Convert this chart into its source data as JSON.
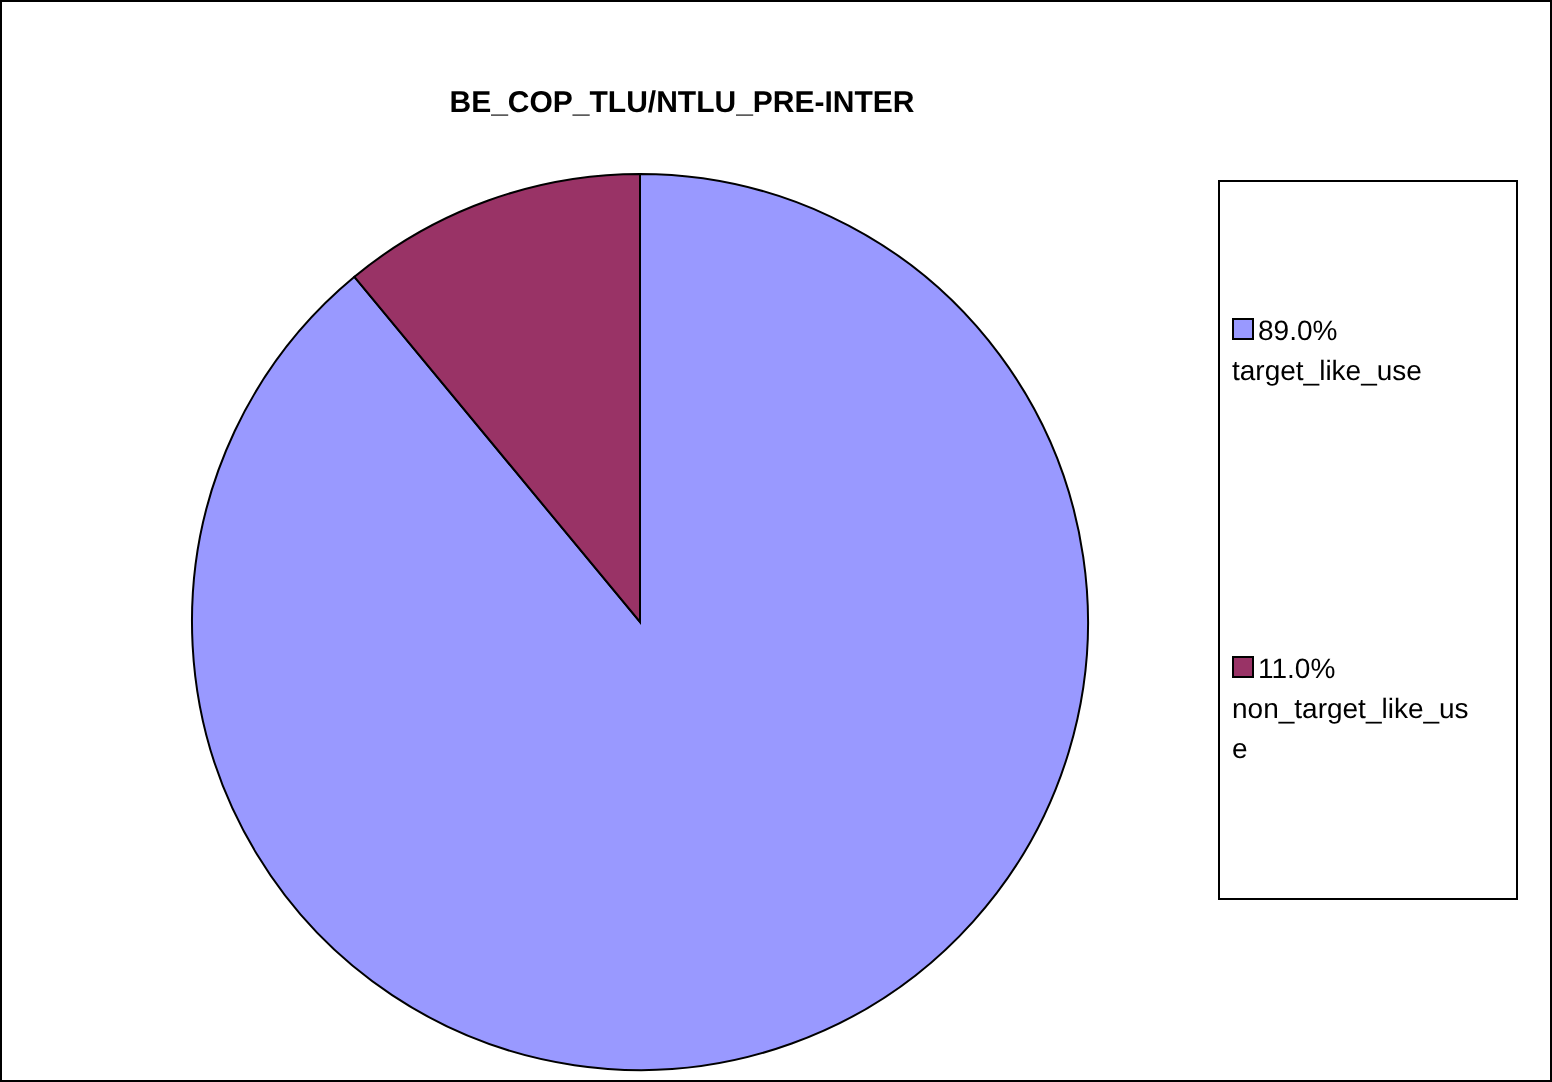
{
  "chart_data": {
    "type": "pie",
    "title": "BE_COP_TLU/NTLU_PRE-INTER",
    "categories": [
      "target_like_use",
      "non_target_like_use"
    ],
    "values": [
      89,
      11
    ],
    "value_labels": [
      "89.0%",
      "11.0%"
    ],
    "colors": [
      "#9999ff",
      "#993366"
    ],
    "legend": "right"
  }
}
